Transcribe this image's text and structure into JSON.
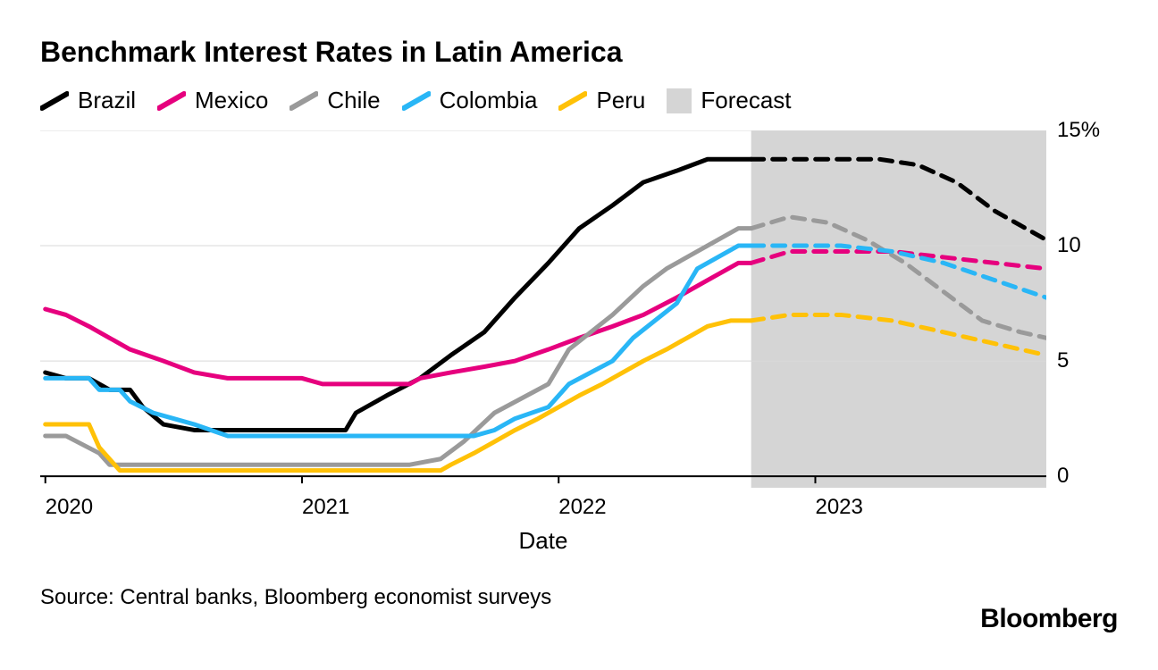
{
  "title": "Benchmark Interest Rates in Latin America",
  "xlabel": "Date",
  "source": "Source: Central banks, Bloomberg economist surveys",
  "brand": "Bloomberg",
  "chart": {
    "type": "line",
    "background_color": "#ffffff",
    "grid_color": "#d9d9d9",
    "axis_color": "#000000",
    "forecast_band": {
      "start": 2022.75,
      "end": 2023.9,
      "fill": "#d5d5d5"
    },
    "xlim": [
      2019.98,
      2023.9
    ],
    "ylim": [
      -0.5,
      15
    ],
    "yticks": [
      0,
      5,
      10,
      15
    ],
    "ytick_labels": [
      "0",
      "5",
      "10",
      "15%"
    ],
    "xticks": [
      2020,
      2021,
      2022,
      2023
    ],
    "xtick_labels": [
      "2020",
      "2021",
      "2022",
      "2023"
    ],
    "line_width_actual": 5,
    "line_width_forecast": 5,
    "dash_forecast": "14 10",
    "legend": [
      {
        "label": "Brazil",
        "color": "#000000",
        "kind": "line"
      },
      {
        "label": "Mexico",
        "color": "#e6007e",
        "kind": "line"
      },
      {
        "label": "Chile",
        "color": "#9a9a9a",
        "kind": "line"
      },
      {
        "label": "Colombia",
        "color": "#29b6f6",
        "kind": "line"
      },
      {
        "label": "Peru",
        "color": "#ffc107",
        "kind": "line"
      },
      {
        "label": "Forecast",
        "color": "#d5d5d5",
        "kind": "box"
      }
    ],
    "series": [
      {
        "name": "Brazil",
        "color": "#000000",
        "actual": [
          [
            2020.0,
            4.5
          ],
          [
            2020.08,
            4.25
          ],
          [
            2020.17,
            4.25
          ],
          [
            2020.25,
            3.75
          ],
          [
            2020.33,
            3.75
          ],
          [
            2020.38,
            3.0
          ],
          [
            2020.46,
            2.25
          ],
          [
            2020.58,
            2.0
          ],
          [
            2020.67,
            2.0
          ],
          [
            2021.0,
            2.0
          ],
          [
            2021.17,
            2.0
          ],
          [
            2021.21,
            2.75
          ],
          [
            2021.33,
            3.5
          ],
          [
            2021.46,
            4.25
          ],
          [
            2021.58,
            5.25
          ],
          [
            2021.71,
            6.25
          ],
          [
            2021.83,
            7.75
          ],
          [
            2021.96,
            9.25
          ],
          [
            2022.08,
            10.75
          ],
          [
            2022.21,
            11.75
          ],
          [
            2022.33,
            12.75
          ],
          [
            2022.46,
            13.25
          ],
          [
            2022.58,
            13.75
          ],
          [
            2022.75,
            13.75
          ]
        ],
        "forecast": [
          [
            2022.75,
            13.75
          ],
          [
            2023.0,
            13.75
          ],
          [
            2023.25,
            13.75
          ],
          [
            2023.4,
            13.5
          ],
          [
            2023.55,
            12.75
          ],
          [
            2023.7,
            11.5
          ],
          [
            2023.9,
            10.25
          ]
        ]
      },
      {
        "name": "Mexico",
        "color": "#e6007e",
        "actual": [
          [
            2020.0,
            7.25
          ],
          [
            2020.08,
            7.0
          ],
          [
            2020.17,
            6.5
          ],
          [
            2020.25,
            6.0
          ],
          [
            2020.33,
            5.5
          ],
          [
            2020.46,
            5.0
          ],
          [
            2020.58,
            4.5
          ],
          [
            2020.71,
            4.25
          ],
          [
            2020.83,
            4.25
          ],
          [
            2021.0,
            4.25
          ],
          [
            2021.08,
            4.0
          ],
          [
            2021.42,
            4.0
          ],
          [
            2021.46,
            4.25
          ],
          [
            2021.58,
            4.5
          ],
          [
            2021.71,
            4.75
          ],
          [
            2021.83,
            5.0
          ],
          [
            2021.96,
            5.5
          ],
          [
            2022.08,
            6.0
          ],
          [
            2022.21,
            6.5
          ],
          [
            2022.33,
            7.0
          ],
          [
            2022.46,
            7.75
          ],
          [
            2022.58,
            8.5
          ],
          [
            2022.7,
            9.25
          ],
          [
            2022.75,
            9.25
          ]
        ],
        "forecast": [
          [
            2022.75,
            9.25
          ],
          [
            2022.9,
            9.75
          ],
          [
            2023.1,
            9.75
          ],
          [
            2023.3,
            9.75
          ],
          [
            2023.5,
            9.5
          ],
          [
            2023.7,
            9.25
          ],
          [
            2023.9,
            9.0
          ]
        ]
      },
      {
        "name": "Chile",
        "color": "#9a9a9a",
        "actual": [
          [
            2020.0,
            1.75
          ],
          [
            2020.08,
            1.75
          ],
          [
            2020.21,
            1.0
          ],
          [
            2020.25,
            0.5
          ],
          [
            2020.33,
            0.5
          ],
          [
            2021.42,
            0.5
          ],
          [
            2021.54,
            0.75
          ],
          [
            2021.63,
            1.5
          ],
          [
            2021.75,
            2.75
          ],
          [
            2021.96,
            4.0
          ],
          [
            2022.04,
            5.5
          ],
          [
            2022.21,
            7.0
          ],
          [
            2022.33,
            8.25
          ],
          [
            2022.42,
            9.0
          ],
          [
            2022.54,
            9.75
          ],
          [
            2022.7,
            10.75
          ],
          [
            2022.75,
            10.75
          ]
        ],
        "forecast": [
          [
            2022.75,
            10.75
          ],
          [
            2022.9,
            11.25
          ],
          [
            2023.05,
            11.0
          ],
          [
            2023.2,
            10.25
          ],
          [
            2023.35,
            9.25
          ],
          [
            2023.5,
            8.0
          ],
          [
            2023.65,
            6.75
          ],
          [
            2023.8,
            6.25
          ],
          [
            2023.9,
            6.0
          ]
        ]
      },
      {
        "name": "Colombia",
        "color": "#29b6f6",
        "actual": [
          [
            2020.0,
            4.25
          ],
          [
            2020.17,
            4.25
          ],
          [
            2020.21,
            3.75
          ],
          [
            2020.29,
            3.75
          ],
          [
            2020.33,
            3.25
          ],
          [
            2020.42,
            2.75
          ],
          [
            2020.5,
            2.5
          ],
          [
            2020.58,
            2.25
          ],
          [
            2020.71,
            1.75
          ],
          [
            2021.67,
            1.75
          ],
          [
            2021.75,
            2.0
          ],
          [
            2021.83,
            2.5
          ],
          [
            2021.96,
            3.0
          ],
          [
            2022.04,
            4.0
          ],
          [
            2022.21,
            5.0
          ],
          [
            2022.29,
            6.0
          ],
          [
            2022.46,
            7.5
          ],
          [
            2022.54,
            9.0
          ],
          [
            2022.7,
            10.0
          ],
          [
            2022.75,
            10.0
          ]
        ],
        "forecast": [
          [
            2022.75,
            10.0
          ],
          [
            2022.9,
            10.0
          ],
          [
            2023.1,
            10.0
          ],
          [
            2023.3,
            9.75
          ],
          [
            2023.5,
            9.25
          ],
          [
            2023.7,
            8.5
          ],
          [
            2023.9,
            7.75
          ]
        ]
      },
      {
        "name": "Peru",
        "color": "#ffc107",
        "actual": [
          [
            2020.0,
            2.25
          ],
          [
            2020.17,
            2.25
          ],
          [
            2020.21,
            1.25
          ],
          [
            2020.29,
            0.25
          ],
          [
            2021.54,
            0.25
          ],
          [
            2021.58,
            0.5
          ],
          [
            2021.67,
            1.0
          ],
          [
            2021.75,
            1.5
          ],
          [
            2021.83,
            2.0
          ],
          [
            2021.92,
            2.5
          ],
          [
            2022.0,
            3.0
          ],
          [
            2022.08,
            3.5
          ],
          [
            2022.17,
            4.0
          ],
          [
            2022.25,
            4.5
          ],
          [
            2022.33,
            5.0
          ],
          [
            2022.42,
            5.5
          ],
          [
            2022.5,
            6.0
          ],
          [
            2022.58,
            6.5
          ],
          [
            2022.67,
            6.75
          ],
          [
            2022.75,
            6.75
          ]
        ],
        "forecast": [
          [
            2022.75,
            6.75
          ],
          [
            2022.9,
            7.0
          ],
          [
            2023.1,
            7.0
          ],
          [
            2023.3,
            6.75
          ],
          [
            2023.5,
            6.25
          ],
          [
            2023.7,
            5.75
          ],
          [
            2023.9,
            5.25
          ]
        ]
      }
    ]
  }
}
